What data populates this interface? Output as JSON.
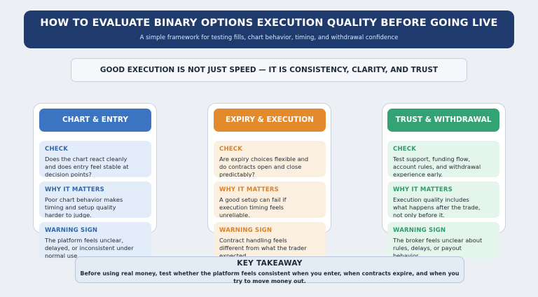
{
  "header": {
    "title": "HOW TO EVALUATE BINARY OPTIONS EXECUTION QUALITY BEFORE GOING LIVE",
    "subtitle": "A simple framework for testing fills, chart behavior, timing, and withdrawal confidence"
  },
  "banner": "GOOD EXECUTION IS NOT JUST SPEED — IT IS CONSISTENCY, CLARITY, AND TRUST",
  "colors": {
    "header": "#1f3b6e",
    "blue": "#3b74c0",
    "orange": "#e38a2c",
    "green": "#34a374"
  },
  "columns": [
    {
      "title": "CHART & ENTRY",
      "cards": [
        {
          "label": "CHECK",
          "text": "Does the chart react cleanly and does entry feel stable at decision points?"
        },
        {
          "label": "WHY IT MATTERS",
          "text": "Poor chart behavior makes timing and setup quality harder to judge."
        },
        {
          "label": "WARNING SIGN",
          "text": "The platform feels unclear, delayed, or inconsistent under normal use."
        }
      ]
    },
    {
      "title": "EXPIRY & EXECUTION",
      "cards": [
        {
          "label": "CHECK",
          "text": "Are expiry choices flexible and do contracts open and close predictably?"
        },
        {
          "label": "WHY IT MATTERS",
          "text": "A good setup can fail if execution timing feels unreliable."
        },
        {
          "label": "WARNING SIGN",
          "text": "Contract handling feels different from what the trader expected."
        }
      ]
    },
    {
      "title": "TRUST & WITHDRAWAL",
      "cards": [
        {
          "label": "CHECK",
          "text": "Test support, funding flow, account rules, and withdrawal experience early."
        },
        {
          "label": "WHY IT MATTERS",
          "text": "Execution quality includes what happens after the trade, not only before it."
        },
        {
          "label": "WARNING SIGN",
          "text": "The broker feels unclear about rules, delays, or payout behavior."
        }
      ]
    }
  ],
  "takeaway": {
    "title": "KEY TAKEAWAY",
    "text": "Before using real money, test whether the platform feels consistent when you enter, when contracts expire, and when you try to move money out."
  }
}
